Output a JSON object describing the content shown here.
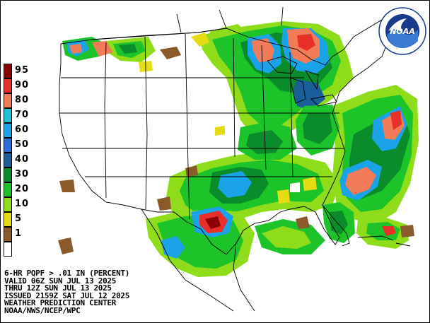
{
  "legend": {
    "items": [
      {
        "label": "95",
        "color": "#8b0000"
      },
      {
        "label": "90",
        "color": "#e8302a"
      },
      {
        "label": "80",
        "color": "#f27c57"
      },
      {
        "label": "70",
        "color": "#1fc3d8"
      },
      {
        "label": "60",
        "color": "#1aa3e8"
      },
      {
        "label": "50",
        "color": "#2a6fd9"
      },
      {
        "label": "40",
        "color": "#1a5e9a"
      },
      {
        "label": "30",
        "color": "#0a8c2a"
      },
      {
        "label": "20",
        "color": "#1cc42a"
      },
      {
        "label": "10",
        "color": "#8fdd1a"
      },
      {
        "label": "5",
        "color": "#e6dc14"
      },
      {
        "label": "1",
        "color": "#8b5a2b"
      },
      {
        "label": "",
        "color": "#ffffff"
      }
    ]
  },
  "caption": {
    "line1": "6-HR PQPF > .01 IN (PERCENT)",
    "line2": "VALID 06Z SUN JUL 13 2025",
    "line3": "THRU 12Z SUN JUL 13 2025",
    "line4": "ISSUED 2159Z SAT JUL 12 2025",
    "line5": "WEATHER PREDICTION CENTER",
    "line6": "NOAA/NWS/NCEP/WPC"
  },
  "logo": {
    "text": "NOAA",
    "ring_text": "NATIONAL OCEANIC AND ATMOSPHERIC ADMINISTRATION"
  }
}
